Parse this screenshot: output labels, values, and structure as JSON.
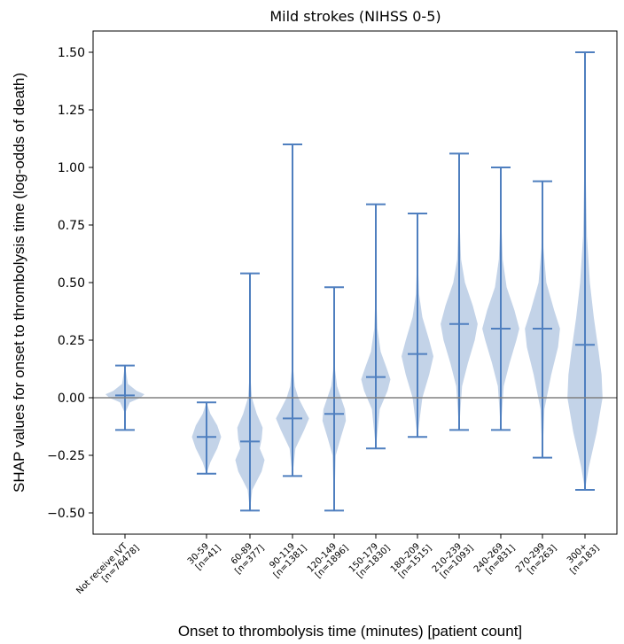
{
  "chart_data": {
    "type": "violin",
    "title": "Mild strokes (NIHSS 0-5)",
    "xlabel": "Onset to thrombolysis time (minutes) [patient count]",
    "ylabel": "SHAP values for onset to thrombolysis time (log-odds of death)",
    "ylim": [
      -0.6,
      1.6
    ],
    "yticks": [
      "1.50",
      "1.25",
      "1.00",
      "0.75",
      "0.50",
      "0.25",
      "0.00",
      "−0.25",
      "−0.50"
    ],
    "ytick_values": [
      1.5,
      1.25,
      1.0,
      0.75,
      0.5,
      0.25,
      0.0,
      -0.25,
      -0.5
    ],
    "reference_line": 0.0,
    "grid": false,
    "colors": {
      "violin_fill": "#c3d3e8",
      "whisker": "#4f7fbf",
      "zero_line": "#808080"
    },
    "categories": [
      {
        "label": "Not receive IVT",
        "count": "[n=76478]",
        "min": -0.14,
        "max": 0.14,
        "median": 0.01,
        "shape": [
          [
            -0.14,
            0
          ],
          [
            -0.06,
            0.04
          ],
          [
            -0.02,
            0.25
          ],
          [
            0.0,
            0.8
          ],
          [
            0.015,
            1.0
          ],
          [
            0.03,
            0.6
          ],
          [
            0.06,
            0.15
          ],
          [
            0.14,
            0
          ]
        ]
      },
      {
        "label": "30-59",
        "count": "[n=41]",
        "min": -0.33,
        "max": -0.02,
        "median": -0.17,
        "shape": [
          [
            -0.33,
            0
          ],
          [
            -0.28,
            0.2
          ],
          [
            -0.22,
            0.55
          ],
          [
            -0.17,
            0.75
          ],
          [
            -0.12,
            0.55
          ],
          [
            -0.07,
            0.2
          ],
          [
            -0.02,
            0
          ]
        ]
      },
      {
        "label": "60-89",
        "count": "[n=377]",
        "min": -0.49,
        "max": 0.54,
        "median": -0.19,
        "shape": [
          [
            -0.49,
            0
          ],
          [
            -0.4,
            0.12
          ],
          [
            -0.32,
            0.6
          ],
          [
            -0.27,
            0.75
          ],
          [
            -0.22,
            0.5
          ],
          [
            -0.18,
            0.6
          ],
          [
            -0.13,
            0.65
          ],
          [
            -0.07,
            0.35
          ],
          [
            0.0,
            0.1
          ],
          [
            0.1,
            0.02
          ],
          [
            0.3,
            0.01
          ],
          [
            0.54,
            0
          ]
        ]
      },
      {
        "label": "90-119",
        "count": "[n=1381]",
        "min": -0.34,
        "max": 1.1,
        "median": -0.09,
        "shape": [
          [
            -0.34,
            0
          ],
          [
            -0.22,
            0.15
          ],
          [
            -0.14,
            0.6
          ],
          [
            -0.09,
            0.85
          ],
          [
            -0.05,
            0.6
          ],
          [
            0.0,
            0.3
          ],
          [
            0.05,
            0.12
          ],
          [
            0.12,
            0.04
          ],
          [
            0.3,
            0.01
          ],
          [
            1.1,
            0
          ]
        ]
      },
      {
        "label": "120-149",
        "count": "[n=1896]",
        "min": -0.49,
        "max": 0.48,
        "median": -0.07,
        "shape": [
          [
            -0.49,
            0
          ],
          [
            -0.25,
            0.08
          ],
          [
            -0.17,
            0.35
          ],
          [
            -0.1,
            0.6
          ],
          [
            -0.05,
            0.55
          ],
          [
            0.0,
            0.35
          ],
          [
            0.05,
            0.15
          ],
          [
            0.12,
            0.05
          ],
          [
            0.3,
            0.01
          ],
          [
            0.48,
            0
          ]
        ]
      },
      {
        "label": "150-179",
        "count": "[n=1830]",
        "min": -0.22,
        "max": 0.84,
        "median": 0.09,
        "shape": [
          [
            -0.22,
            0
          ],
          [
            -0.05,
            0.2
          ],
          [
            0.03,
            0.6
          ],
          [
            0.08,
            0.75
          ],
          [
            0.13,
            0.55
          ],
          [
            0.2,
            0.25
          ],
          [
            0.3,
            0.08
          ],
          [
            0.45,
            0.02
          ],
          [
            0.84,
            0
          ]
        ]
      },
      {
        "label": "180-209",
        "count": "[n=1515]",
        "min": -0.17,
        "max": 0.8,
        "median": 0.19,
        "shape": [
          [
            -0.17,
            0
          ],
          [
            0.0,
            0.25
          ],
          [
            0.1,
            0.6
          ],
          [
            0.18,
            0.82
          ],
          [
            0.25,
            0.6
          ],
          [
            0.35,
            0.25
          ],
          [
            0.45,
            0.08
          ],
          [
            0.6,
            0.02
          ],
          [
            0.8,
            0
          ]
        ]
      },
      {
        "label": "210-239",
        "count": "[n=1093]",
        "min": -0.14,
        "max": 1.06,
        "median": 0.32,
        "shape": [
          [
            -0.14,
            0
          ],
          [
            0.05,
            0.15
          ],
          [
            0.15,
            0.45
          ],
          [
            0.25,
            0.8
          ],
          [
            0.32,
            0.95
          ],
          [
            0.4,
            0.7
          ],
          [
            0.5,
            0.3
          ],
          [
            0.6,
            0.1
          ],
          [
            0.75,
            0.03
          ],
          [
            1.06,
            0
          ]
        ]
      },
      {
        "label": "240-269",
        "count": "[n=831]",
        "min": -0.14,
        "max": 1.0,
        "median": 0.3,
        "shape": [
          [
            -0.14,
            0
          ],
          [
            0.05,
            0.15
          ],
          [
            0.15,
            0.45
          ],
          [
            0.25,
            0.8
          ],
          [
            0.3,
            0.95
          ],
          [
            0.38,
            0.7
          ],
          [
            0.48,
            0.3
          ],
          [
            0.6,
            0.1
          ],
          [
            0.75,
            0.03
          ],
          [
            1.0,
            0
          ]
        ]
      },
      {
        "label": "270-299",
        "count": "[n=263]",
        "min": -0.26,
        "max": 0.94,
        "median": 0.3,
        "shape": [
          [
            -0.26,
            0
          ],
          [
            -0.05,
            0.1
          ],
          [
            0.1,
            0.45
          ],
          [
            0.22,
            0.8
          ],
          [
            0.3,
            0.9
          ],
          [
            0.38,
            0.6
          ],
          [
            0.5,
            0.2
          ],
          [
            0.65,
            0.05
          ],
          [
            0.94,
            0
          ]
        ]
      },
      {
        "label": "300+",
        "count": "[n=183]",
        "min": -0.4,
        "max": 1.5,
        "median": 0.23,
        "shape": [
          [
            -0.4,
            0
          ],
          [
            -0.3,
            0.2
          ],
          [
            -0.15,
            0.6
          ],
          [
            0.0,
            0.9
          ],
          [
            0.1,
            0.85
          ],
          [
            0.2,
            0.7
          ],
          [
            0.35,
            0.45
          ],
          [
            0.5,
            0.25
          ],
          [
            0.7,
            0.1
          ],
          [
            1.0,
            0.03
          ],
          [
            1.5,
            0
          ]
        ]
      }
    ]
  }
}
